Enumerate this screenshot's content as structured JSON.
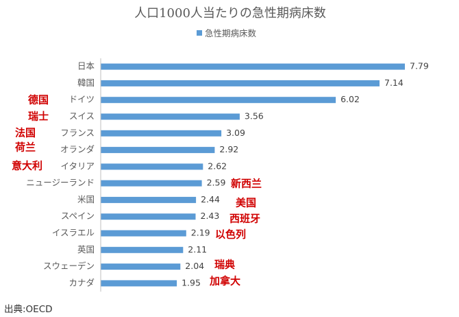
{
  "chart_data": {
    "type": "bar",
    "orientation": "horizontal",
    "title": "人口1000人当たりの急性期病床数",
    "legend": {
      "entries": [
        "急性期病床数"
      ],
      "placement": "top"
    },
    "categories": [
      "日本",
      "韓国",
      "ドイツ",
      "スイス",
      "フランス",
      "オランダ",
      "イタリア",
      "ニュージーランド",
      "米国",
      "スペイン",
      "イスラエル",
      "英国",
      "スウェーデン",
      "カナダ"
    ],
    "series": [
      {
        "name": "急性期病床数",
        "values": [
          7.79,
          7.14,
          6.02,
          3.56,
          3.09,
          2.92,
          2.62,
          2.59,
          2.44,
          2.43,
          2.19,
          2.11,
          2.04,
          1.95
        ],
        "color": "#5B9BD5"
      }
    ],
    "xlim": [
      0,
      8
    ],
    "grid": false,
    "data_labels": true,
    "annotations": [
      {
        "text": "德国",
        "category": "ドイツ"
      },
      {
        "text": "瑞士",
        "category": "スイス"
      },
      {
        "text": "法国",
        "category": "フランス"
      },
      {
        "text": "荷兰",
        "category": "オランダ"
      },
      {
        "text": "意大利",
        "category": "イタリア"
      },
      {
        "text": "新西兰",
        "category": "ニュージーランド"
      },
      {
        "text": "美国",
        "category": "米国"
      },
      {
        "text": "西班牙",
        "category": "スペイン"
      },
      {
        "text": "以色列",
        "category": "イスラエル"
      },
      {
        "text": "瑞典",
        "category": "スウェーデン"
      },
      {
        "text": "加拿大",
        "category": "カナダ"
      }
    ]
  },
  "source": "出典:OECD",
  "colors": {
    "bar": "#5B9BD5",
    "annotation": "#D00000",
    "axis": "#BFBFBF"
  }
}
